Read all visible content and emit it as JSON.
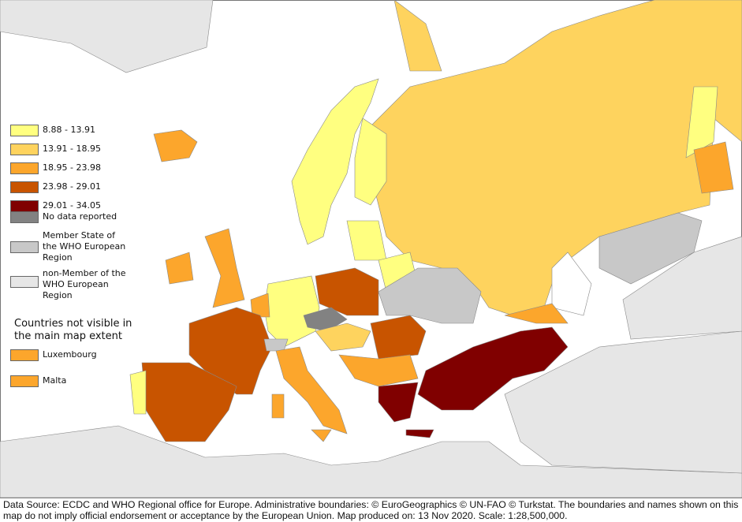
{
  "legend": {
    "items": [
      {
        "label": "8.88 - 13.91",
        "color": "#ffff80"
      },
      {
        "label": "13.91 - 18.95",
        "color": "#fed35e"
      },
      {
        "label": "18.95 - 23.98",
        "color": "#fca62c"
      },
      {
        "label": "23.98 - 29.01",
        "color": "#c85400"
      },
      {
        "label": "29.01 - 34.05",
        "color": "#800000"
      },
      {
        "label": "No data reported",
        "color": "#828282"
      },
      {
        "label": "Member State of the WHO European Region",
        "color": "#c8c8c8"
      },
      {
        "label": "non-Member of the WHO European Region",
        "color": "#e6e6e6"
      }
    ]
  },
  "inset": {
    "title": "Countries not visible in the main map extent",
    "items": [
      {
        "label": "Luxembourg",
        "color": "#fca62c"
      },
      {
        "label": "Malta",
        "color": "#fca62c"
      }
    ]
  },
  "footer": "Data Source: ECDC and WHO Regional office for Europe. Administrative boundaries: © EuroGeographics © UN-FAO © Turkstat. The boundaries and names shown on this map do not imply official endorsement or acceptance by the European Union. Map produced on: 13 Nov 2020. Scale: 1:28,500,000."
}
